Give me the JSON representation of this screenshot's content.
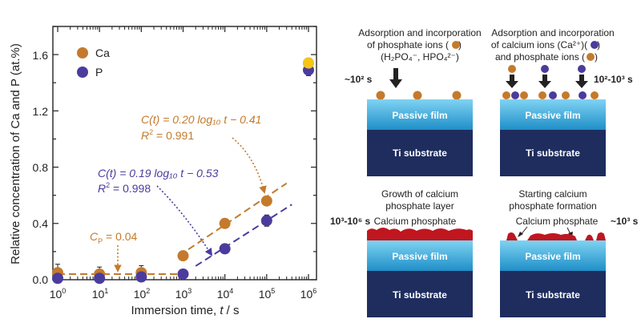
{
  "chart_data": {
    "type": "scatter",
    "xscale": "log",
    "xlim": [
      1,
      1000000
    ],
    "ylim": [
      0,
      1.8
    ],
    "xlabel_main": "Immersion time, ",
    "xlabel_var": "t",
    "xlabel_unit": " / s",
    "ylabel": "Relative concentration of Ca and P (at.%)",
    "xtick_bases": [
      "10",
      "10",
      "10",
      "10",
      "10",
      "10",
      "10"
    ],
    "xtick_exps": [
      "0",
      "1",
      "2",
      "3",
      "4",
      "5",
      "6"
    ],
    "xtick_values": [
      1,
      10,
      100,
      1000,
      10000,
      100000,
      1000000
    ],
    "ytick_labels": [
      "0.0",
      "0.4",
      "0.8",
      "1.2",
      "1.6"
    ],
    "ytick_values": [
      0,
      0.4,
      0.8,
      1.2,
      1.6
    ],
    "legend": [
      {
        "name": "Ca",
        "color": "#C47A2C"
      },
      {
        "name": "P",
        "color": "#4A3C9C"
      }
    ],
    "series": [
      {
        "name": "Ca",
        "color": "#C47A2C",
        "x": [
          1,
          10,
          100,
          1000,
          10000,
          100000,
          1000000
        ],
        "y": [
          0.05,
          0.04,
          0.05,
          0.17,
          0.4,
          0.56,
          1.54
        ],
        "err": [
          0.06,
          0.05,
          0.05,
          0.03,
          0.02,
          0.03,
          0.03
        ]
      },
      {
        "name": "P",
        "color": "#4A3C9C",
        "x": [
          1,
          10,
          100,
          1000,
          10000,
          100000,
          1000000
        ],
        "y": [
          0.01,
          0.01,
          0.02,
          0.04,
          0.22,
          0.42,
          1.49
        ],
        "err": [
          0.01,
          0.01,
          0.02,
          0.02,
          0.02,
          0.04,
          0.04
        ]
      }
    ],
    "highlight_point": {
      "x": 1000000,
      "y": 1.54,
      "color": "#F5C518"
    },
    "fits": [
      {
        "name": "Ca-fit",
        "color": "#C47A2C",
        "slope": 0.2,
        "intercept": -0.41,
        "x_from": 800,
        "x_to": 300000
      },
      {
        "name": "P-fit",
        "color": "#4A3C9C",
        "slope": 0.19,
        "intercept": -0.53,
        "x_from": 2000,
        "x_to": 400000
      },
      {
        "name": "Cp-line",
        "color": "#C47A2C",
        "const": 0.04,
        "x_from": 1,
        "x_to": 800
      }
    ],
    "annotations": {
      "ca_eq": "C(t) = 0.20 log₁₀ t − 0.41",
      "ca_r2_label": "R",
      "ca_r2_exp": "2",
      "ca_r2_value": " = 0.991",
      "p_eq": "C(t) = 0.19 log₁₀ t − 0.53",
      "p_r2_label": "R",
      "p_r2_exp": "2",
      "p_r2_value": " = 0.998",
      "cp_label": "C",
      "cp_sub": "P",
      "cp_value": " = 0.04"
    }
  },
  "schematic": {
    "colors": {
      "passive": "#2FA8DC",
      "substrate": "#1E2D5E",
      "calcium_phosphate": "#C0161F",
      "ca_particle": "#C47A2C",
      "p_particle": "#4A3C9C"
    },
    "panel_tl": {
      "title": [
        "Adsorption and incorporation",
        "of phosphate ions (",
        ")",
        "(H₂PO₄⁻, HPO₄²⁻)"
      ],
      "time": "~10² s",
      "passive_label": "Passive film",
      "substrate_label": "Ti substrate"
    },
    "panel_tr": {
      "title": [
        "Adsorption and incorporation",
        "of calcium ions (Ca²⁺)(",
        ")",
        "and phosphate ions (",
        ")"
      ],
      "time": "10²-10³ s",
      "passive_label": "Passive film",
      "substrate_label": "Ti substrate"
    },
    "panel_bl": {
      "title": [
        "Growth of calcium",
        "phosphate layer"
      ],
      "layer_label": "Calcium phosphate",
      "time": "10³-10⁶ s",
      "passive_label": "Passive film",
      "substrate_label": "Ti substrate"
    },
    "panel_br": {
      "title": [
        "Starting calcium",
        "phosphate formation"
      ],
      "layer_label": "Calcium phosphate",
      "time": "~10³ s",
      "passive_label": "Passive film",
      "substrate_label": "Ti substrate"
    }
  }
}
